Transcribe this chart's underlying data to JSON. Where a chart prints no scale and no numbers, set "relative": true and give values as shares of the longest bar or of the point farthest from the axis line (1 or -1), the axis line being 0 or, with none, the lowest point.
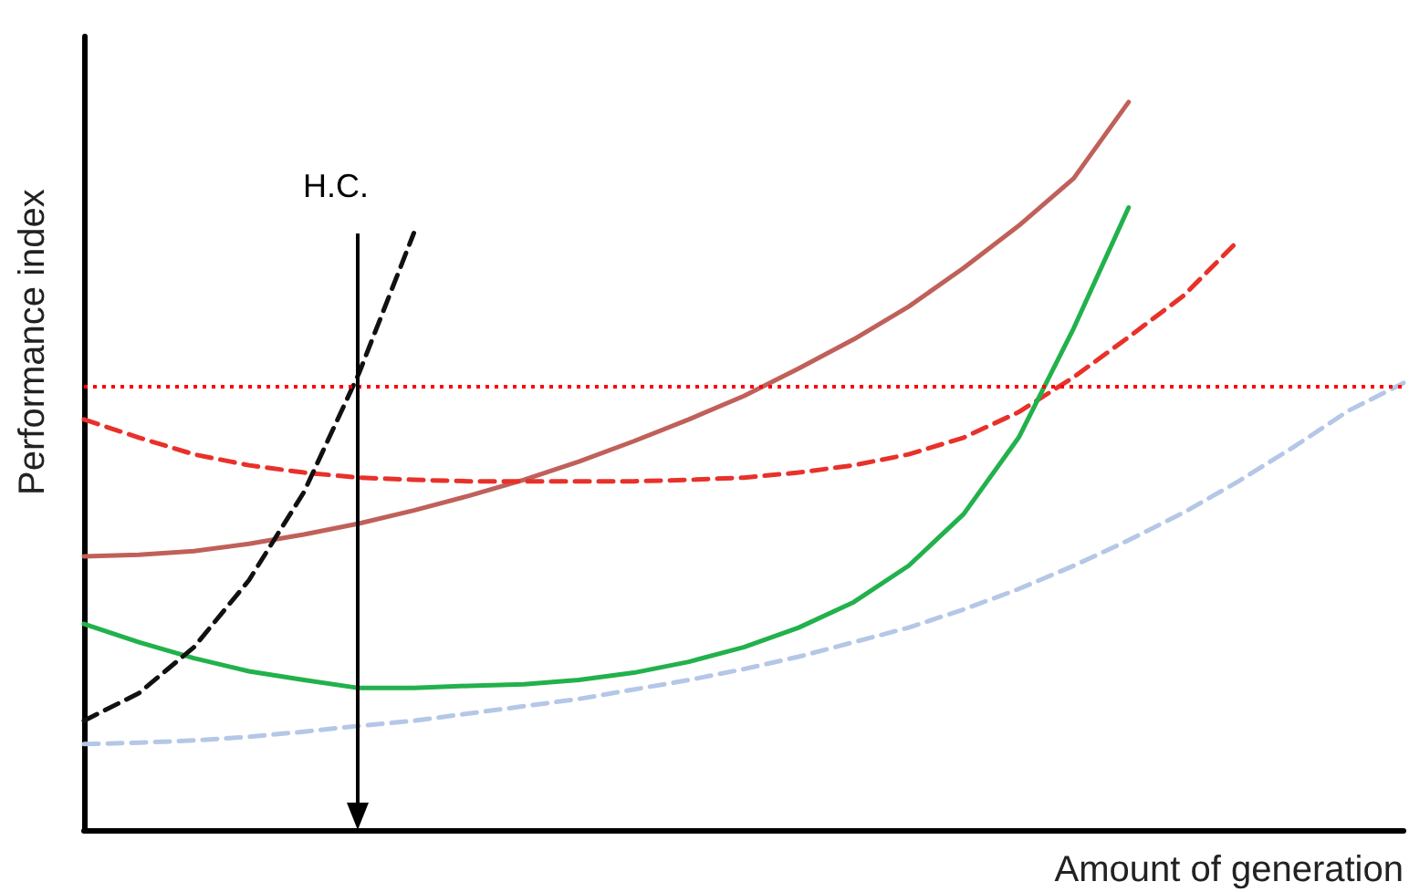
{
  "chart_data": {
    "type": "line",
    "relative": true,
    "xlabel": "Amount of generation",
    "ylabel": "Performance index",
    "grid": false,
    "marker": "none",
    "categories": [
      null,
      null,
      null,
      null,
      null,
      null,
      null,
      null,
      null,
      null,
      null,
      null,
      null,
      null,
      null,
      null,
      null,
      null,
      null,
      null,
      null,
      null,
      null,
      null,
      null
    ],
    "series": [
      {
        "color": "#c0605a",
        "line_style": "solid",
        "values": [
          0.376,
          0.378,
          0.383,
          0.393,
          0.406,
          0.421,
          0.439,
          0.459,
          0.481,
          0.506,
          0.534,
          0.564,
          0.596,
          0.634,
          0.674,
          0.719,
          0.772,
          0.83,
          0.895,
          1,
          null,
          null,
          null,
          null,
          null
        ]
      },
      {
        "color": "#e8312a",
        "line_style": "dashed",
        "values": [
          0.564,
          0.539,
          0.516,
          0.501,
          0.491,
          0.484,
          0.481,
          0.479,
          0.479,
          0.479,
          0.479,
          0.481,
          0.484,
          0.491,
          0.501,
          0.516,
          0.539,
          0.574,
          0.622,
          0.677,
          0.734,
          0.81,
          null,
          null,
          null
        ]
      },
      {
        "color": "#22b14c",
        "line_style": "solid",
        "values": [
          0.283,
          0.258,
          0.236,
          0.218,
          0.206,
          0.195,
          0.195,
          0.198,
          0.2,
          0.206,
          0.216,
          0.231,
          0.251,
          0.278,
          0.313,
          0.363,
          0.434,
          0.539,
          0.689,
          0.855,
          null,
          null,
          null,
          null,
          null
        ]
      },
      {
        "color": "#111111",
        "line_style": "dashed",
        "values": [
          0.15,
          0.188,
          0.251,
          0.343,
          0.464,
          0.627,
          0.82,
          null,
          null,
          null,
          null,
          null,
          null,
          null,
          null,
          null,
          null,
          null,
          null,
          null,
          null,
          null,
          null,
          null,
          null
        ]
      },
      {
        "color": "#b4c7e7",
        "line_style": "dashed",
        "values": [
          0.118,
          0.12,
          0.123,
          0.128,
          0.135,
          0.143,
          0.15,
          0.16,
          0.17,
          0.18,
          0.193,
          0.206,
          0.221,
          0.238,
          0.258,
          0.278,
          0.303,
          0.331,
          0.363,
          0.398,
          0.436,
          0.479,
          0.526,
          0.576,
          0.614
        ]
      }
    ],
    "ref_lines": [
      {
        "axis": "y",
        "value": 0.609,
        "color": "#ff0000",
        "line_style": "dotted"
      }
    ],
    "annotations": [
      "H.C."
    ]
  }
}
